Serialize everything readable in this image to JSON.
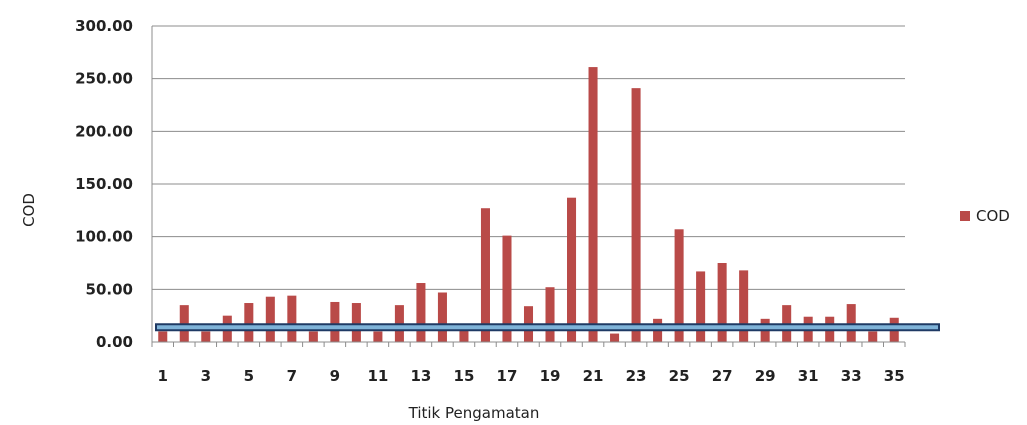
{
  "chart_data": {
    "type": "bar",
    "title": "",
    "xlabel": "Titik Pengamatan",
    "ylabel": "COD",
    "ylim": [
      0,
      300
    ],
    "yticks": [
      "0.00",
      "50.00",
      "100.00",
      "150.00",
      "200.00",
      "250.00",
      "300.00"
    ],
    "categories": [
      "1",
      "2",
      "3",
      "4",
      "5",
      "6",
      "7",
      "8",
      "9",
      "10",
      "11",
      "12",
      "13",
      "14",
      "15",
      "16",
      "17",
      "18",
      "19",
      "20",
      "21",
      "22",
      "23",
      "24",
      "25",
      "26",
      "27",
      "28",
      "29",
      "30",
      "31",
      "32",
      "33",
      "34",
      "35"
    ],
    "xtick_labels": [
      "1",
      "3",
      "5",
      "7",
      "9",
      "11",
      "13",
      "15",
      "17",
      "19",
      "21",
      "23",
      "25",
      "27",
      "29",
      "31",
      "33",
      "35"
    ],
    "series": [
      {
        "name": "COD",
        "color": "#b94a48",
        "values": [
          10,
          35,
          10,
          25,
          37,
          43,
          44,
          10,
          38,
          37,
          10,
          35,
          56,
          47,
          15,
          127,
          101,
          34,
          52,
          137,
          261,
          8,
          241,
          22,
          107,
          67,
          75,
          68,
          22,
          35,
          24,
          24,
          36,
          10,
          23
        ]
      }
    ],
    "reference_line": {
      "value": 14,
      "color": "#1f3a64",
      "fill": "#7fb3d8"
    },
    "grid": "horizontal",
    "legend": "right"
  }
}
